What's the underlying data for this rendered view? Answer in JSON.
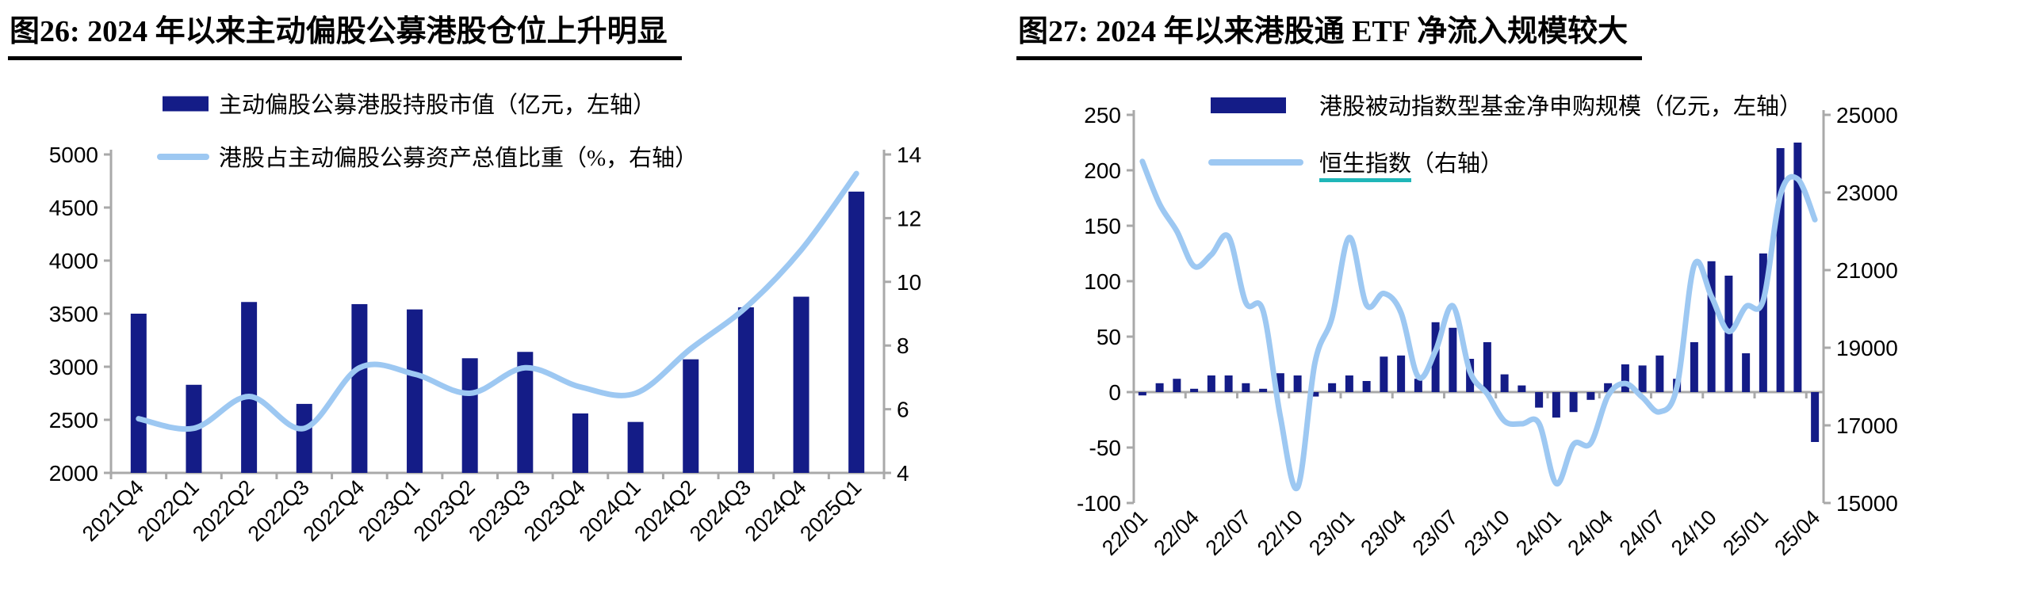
{
  "colors": {
    "bar": "#141c87",
    "line": "#9dc8f2",
    "underline": "#1fb6b8",
    "axis": "#a9a9a9",
    "text": "#000000",
    "background": "#ffffff"
  },
  "chart_data": [
    {
      "id": "fig26",
      "type": "bar+line",
      "title": "图26:  2024 年以来主动偏股公募港股仓位上升明显",
      "categories": [
        "2021Q4",
        "2022Q1",
        "2022Q2",
        "2022Q3",
        "2022Q4",
        "2023Q1",
        "2023Q2",
        "2023Q3",
        "2023Q4",
        "2024Q1",
        "2024Q2",
        "2024Q3",
        "2024Q4",
        "2025Q1"
      ],
      "series": [
        {
          "name": "主动偏股公募港股持股市值（亿元，左轴）",
          "type": "bar",
          "axis": "left",
          "color": "#141c87",
          "values": [
            3500,
            2830,
            3610,
            2650,
            3590,
            3540,
            3080,
            3140,
            2560,
            2480,
            3070,
            3560,
            3660,
            4650
          ]
        },
        {
          "name": "港股占主动偏股公募资产总值比重（%，右轴）",
          "type": "line",
          "axis": "right",
          "color": "#9dc8f2",
          "values": [
            5.7,
            5.4,
            6.4,
            5.4,
            7.3,
            7.1,
            6.5,
            7.3,
            6.7,
            6.5,
            7.9,
            9.2,
            11.0,
            13.4
          ]
        }
      ],
      "left_axis": {
        "min": 2000,
        "max": 5000,
        "ticks": [
          5000,
          4500,
          4000,
          3500,
          3000,
          2500,
          2000
        ]
      },
      "right_axis": {
        "min": 4,
        "max": 14,
        "ticks": [
          14,
          12,
          10,
          8,
          6,
          4
        ]
      },
      "label_every": 1,
      "grid": false,
      "legend_position": "top"
    },
    {
      "id": "fig27",
      "type": "bar+line",
      "title": "图27:  2024 年以来港股通 ETF 净流入规模较大",
      "categories": [
        "22/01",
        "22/02",
        "22/03",
        "22/04",
        "22/05",
        "22/06",
        "22/07",
        "22/08",
        "22/09",
        "22/10",
        "22/11",
        "22/12",
        "23/01",
        "23/02",
        "23/03",
        "23/04",
        "23/05",
        "23/06",
        "23/07",
        "23/08",
        "23/09",
        "23/10",
        "23/11",
        "23/12",
        "24/01",
        "24/02",
        "24/03",
        "24/04",
        "24/05",
        "24/06",
        "24/07",
        "24/08",
        "24/09",
        "24/10",
        "24/11",
        "24/12",
        "25/01",
        "25/02",
        "25/03",
        "25/04"
      ],
      "series": [
        {
          "name": "港股被动指数型基金净申购规模（亿元，左轴）",
          "type": "bar",
          "axis": "left",
          "color": "#141c87",
          "values": [
            -3,
            8,
            12,
            3,
            15,
            15,
            8,
            3,
            17,
            15,
            -4,
            8,
            15,
            10,
            32,
            33,
            12,
            63,
            58,
            30,
            45,
            16,
            6,
            -14,
            -23,
            -18,
            -7,
            8,
            25,
            24,
            33,
            12,
            45,
            118,
            105,
            35,
            125,
            220,
            225,
            -45
          ]
        },
        {
          "name": "恒生指数（右轴）",
          "type": "line",
          "axis": "right",
          "color": "#9dc8f2",
          "underline": true,
          "values": [
            23800,
            22700,
            22000,
            21100,
            21400,
            21860,
            20160,
            19950,
            17220,
            15400,
            18600,
            19780,
            21840,
            20100,
            20400,
            19900,
            18250,
            18920,
            20080,
            18380,
            17810,
            17110,
            17040,
            17050,
            15500,
            16510,
            16540,
            17760,
            18080,
            17720,
            17350,
            17990,
            21130,
            20320,
            19420,
            20060,
            20220,
            22940,
            23350,
            22300
          ]
        }
      ],
      "left_axis": {
        "min": -100,
        "max": 250,
        "ticks": [
          250,
          200,
          150,
          100,
          50,
          0,
          -50,
          -100
        ]
      },
      "right_axis": {
        "min": 15000,
        "max": 25000,
        "ticks": [
          25000,
          23000,
          21000,
          19000,
          17000,
          15000
        ]
      },
      "label_every": 3,
      "grid": false,
      "legend_position": "top-left-inside"
    }
  ]
}
